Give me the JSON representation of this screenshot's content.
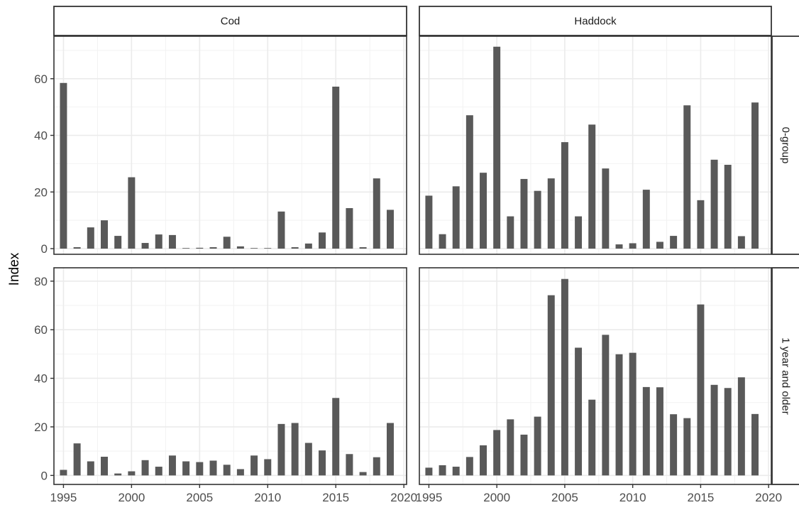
{
  "chart_data": {
    "type": "bar",
    "ylabel": "Index",
    "xlabel": "",
    "facet_columns": [
      "Cod",
      "Haddock"
    ],
    "facet_rows": [
      "0-group",
      "1 year and older"
    ],
    "x": [
      1995,
      1996,
      1997,
      1998,
      1999,
      2000,
      2001,
      2002,
      2003,
      2004,
      2005,
      2006,
      2007,
      2008,
      2009,
      2010,
      2011,
      2012,
      2013,
      2014,
      2015,
      2016,
      2017,
      2018,
      2019
    ],
    "x_ticks": [
      1995,
      2000,
      2005,
      2010,
      2015,
      2020
    ],
    "xlim": [
      1994.3,
      2020.2
    ],
    "rows": [
      {
        "ylim": [
          -2,
          75
        ],
        "y_ticks": [
          0,
          20,
          40,
          60
        ],
        "panels": [
          {
            "name": "Cod",
            "values": [
              58.5,
              0.5,
              7.5,
              10,
              4.5,
              25.2,
              2,
              5,
              4.8,
              0.2,
              0.3,
              0.5,
              4.2,
              0.8,
              0.2,
              0.2,
              13.1,
              0.5,
              1.8,
              5.7,
              57.2,
              14.3,
              0.5,
              24.8,
              13.7
            ]
          },
          {
            "name": "Haddock",
            "values": [
              18.7,
              5.1,
              22,
              47.1,
              26.8,
              71.3,
              11.4,
              24.6,
              20.4,
              24.8,
              37.6,
              11.4,
              43.8,
              28.3,
              1.5,
              1.9,
              20.8,
              2.4,
              4.5,
              50.6,
              17.1,
              31.4,
              29.6,
              4.4,
              51.6
            ]
          }
        ]
      },
      {
        "ylim": [
          -3.7,
          85.5
        ],
        "y_ticks": [
          0,
          20,
          40,
          60,
          80
        ],
        "panels": [
          {
            "name": "Cod",
            "values": [
              2.3,
              13.2,
              5.8,
              7.7,
              0.8,
              1.7,
              6.3,
              3.6,
              8.2,
              5.8,
              5.5,
              6.1,
              4.4,
              2.6,
              8.2,
              6.7,
              21.2,
              21.6,
              13.4,
              10.3,
              31.9,
              8.8,
              1.4,
              7.5,
              21.6
            ]
          },
          {
            "name": "Haddock",
            "values": [
              3.2,
              4.2,
              3.6,
              7.6,
              12.4,
              18.7,
              23.1,
              16.8,
              24.2,
              74.2,
              80.9,
              52.6,
              31.2,
              57.9,
              49.9,
              50.5,
              36.4,
              36.3,
              25.2,
              23.6,
              70.4,
              37.3,
              36,
              40.4,
              25.3
            ]
          }
        ]
      }
    ],
    "colors": {
      "bar": "#595959",
      "grid_major": "#ebebeb",
      "grid_minor": "#f2f2f2",
      "strip_fill": "#ffffff",
      "frame": "#333333"
    },
    "grid": true,
    "theme": "bw"
  }
}
